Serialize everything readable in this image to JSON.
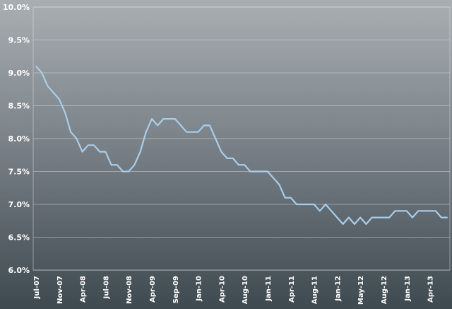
{
  "chart_data": {
    "type": "line",
    "title": "",
    "xlabel": "",
    "ylabel": "",
    "ylim": [
      6.0,
      10.0
    ],
    "y_ticks": [
      "6.0%",
      "6.5%",
      "7.0%",
      "7.5%",
      "8.0%",
      "8.5%",
      "9.0%",
      "9.5%",
      "10.0%"
    ],
    "x_tick_labels": [
      "Jul-07",
      "Nov-07",
      "Apr-08",
      "Jul-08",
      "Nov-08",
      "Apr-09",
      "Sep-09",
      "Jan-10",
      "Apr-10",
      "Aug-10",
      "Jan-11",
      "Apr-11",
      "Aug-11",
      "Jan-12",
      "May-12",
      "Aug-12",
      "Jan-13",
      "Apr-13"
    ],
    "x_tick_every": 4,
    "grid": true,
    "legend": "none",
    "line_color": "#a9cdea",
    "series": [
      {
        "values": [
          9.1,
          9.0,
          8.8,
          8.7,
          8.6,
          8.4,
          8.1,
          8.0,
          7.8,
          7.9,
          7.9,
          7.8,
          7.8,
          7.6,
          7.6,
          7.5,
          7.5,
          7.6,
          7.8,
          8.1,
          8.3,
          8.2,
          8.3,
          8.3,
          8.3,
          8.2,
          8.1,
          8.1,
          8.1,
          8.2,
          8.2,
          8.0,
          7.8,
          7.7,
          7.7,
          7.6,
          7.6,
          7.5,
          7.5,
          7.5,
          7.5,
          7.4,
          7.3,
          7.1,
          7.1,
          7.0,
          7.0,
          7.0,
          7.0,
          6.9,
          7.0,
          6.9,
          6.8,
          6.7,
          6.8,
          6.7,
          6.8,
          6.7,
          6.8,
          6.8,
          6.8,
          6.8,
          6.9,
          6.9,
          6.9,
          6.8,
          6.9,
          6.9,
          6.9,
          6.9,
          6.8,
          6.8
        ]
      }
    ]
  }
}
